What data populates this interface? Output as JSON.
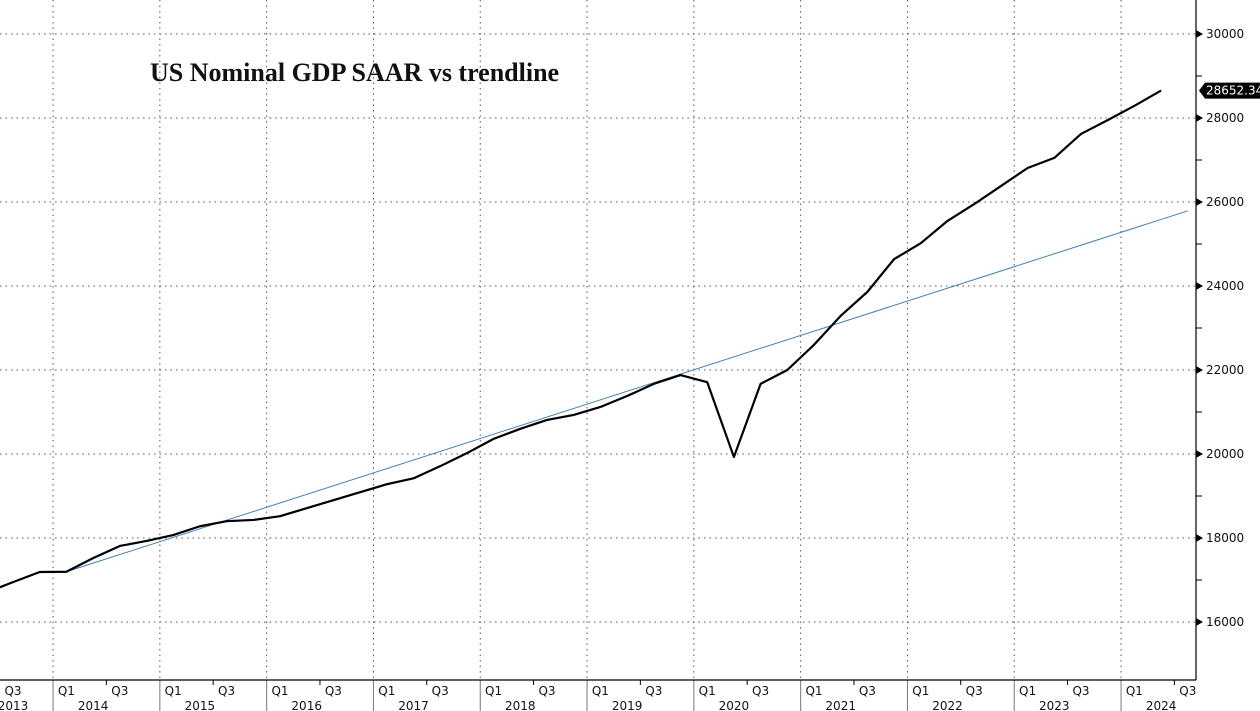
{
  "chart_data": {
    "type": "line",
    "title": "US Nominal GDP SAAR vs trendline",
    "xlabel": "",
    "ylabel": "",
    "ylim": [
      15000,
      31000
    ],
    "yticks": [
      "16000",
      "18000",
      "20000",
      "22000",
      "24000",
      "26000",
      "28000",
      "30000"
    ],
    "grid": true,
    "x_quarter_labels": [
      {
        "q": "Q3",
        "year": "2013"
      },
      {
        "q": "Q1",
        "year": "2014"
      },
      {
        "q": "Q3",
        "year": ""
      },
      {
        "q": "Q1",
        "year": "2015"
      },
      {
        "q": "Q3",
        "year": ""
      },
      {
        "q": "Q1",
        "year": "2016"
      },
      {
        "q": "Q3",
        "year": ""
      },
      {
        "q": "Q1",
        "year": "2017"
      },
      {
        "q": "Q3",
        "year": ""
      },
      {
        "q": "Q1",
        "year": "2018"
      },
      {
        "q": "Q3",
        "year": ""
      },
      {
        "q": "Q1",
        "year": "2019"
      },
      {
        "q": "Q3",
        "year": ""
      },
      {
        "q": "Q1",
        "year": "2020"
      },
      {
        "q": "Q3",
        "year": ""
      },
      {
        "q": "Q1",
        "year": "2021"
      },
      {
        "q": "Q3",
        "year": ""
      },
      {
        "q": "Q1",
        "year": "2022"
      },
      {
        "q": "Q3",
        "year": ""
      },
      {
        "q": "Q1",
        "year": "2023"
      },
      {
        "q": "Q3",
        "year": ""
      },
      {
        "q": "Q1",
        "year": "2024"
      },
      {
        "q": "Q3",
        "year": ""
      }
    ],
    "x": [
      "2013Q2",
      "2013Q3",
      "2013Q4",
      "2014Q1",
      "2014Q2",
      "2014Q3",
      "2014Q4",
      "2015Q1",
      "2015Q2",
      "2015Q3",
      "2015Q4",
      "2016Q1",
      "2016Q2",
      "2016Q3",
      "2016Q4",
      "2017Q1",
      "2017Q2",
      "2017Q3",
      "2017Q4",
      "2018Q1",
      "2018Q2",
      "2018Q3",
      "2018Q4",
      "2019Q1",
      "2019Q2",
      "2019Q3",
      "2019Q4",
      "2020Q1",
      "2020Q2",
      "2020Q3",
      "2020Q4",
      "2021Q1",
      "2021Q2",
      "2021Q3",
      "2021Q4",
      "2022Q1",
      "2022Q2",
      "2022Q3",
      "2022Q4",
      "2023Q1",
      "2023Q2",
      "2023Q3",
      "2023Q4",
      "2024Q1",
      "2024Q2"
    ],
    "series": [
      {
        "name": "US Nominal GDP SAAR",
        "color": "#000000",
        "values": [
          16700,
          16950,
          17190,
          17197,
          17520,
          17810,
          17930,
          18070,
          18280,
          18400,
          18430,
          18520,
          18710,
          18900,
          19090,
          19280,
          19420,
          19710,
          20020,
          20360,
          20600,
          20810,
          20930,
          21120,
          21380,
          21670,
          21880,
          21710,
          19930,
          21670,
          22000,
          22600,
          23290,
          23860,
          24640,
          25020,
          25550,
          25950,
          26380,
          26810,
          27050,
          27620,
          27950,
          28290,
          28652.34
        ]
      },
      {
        "name": "Trendline",
        "color": "#3f7fb5",
        "points": [
          {
            "x": "2014Q1",
            "y": 17197
          },
          {
            "x": "2024Q3",
            "y": 25790
          }
        ]
      }
    ],
    "last_value_label": "28652.34"
  }
}
